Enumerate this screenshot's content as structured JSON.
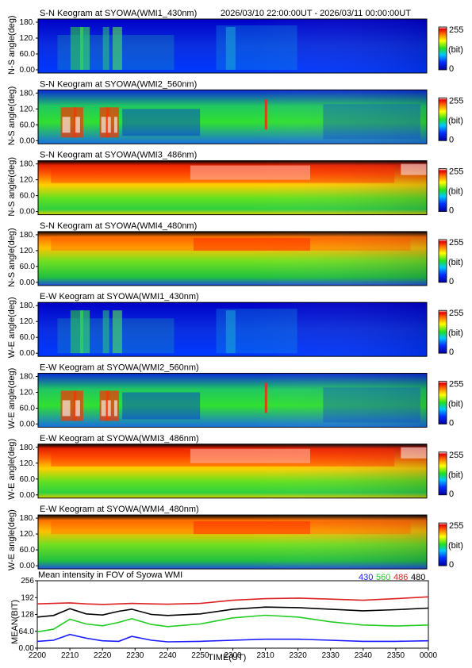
{
  "header": {
    "time_range": "2026/03/10 22:00:00UT - 2026/03/11 00:00:00UT"
  },
  "colorbar": {
    "max_label": "255",
    "unit_label": "(bit)",
    "min_label": "0"
  },
  "keograms": [
    {
      "title": "S-N Keogram at SYOWA(WMI1_430nm)",
      "ylabel": "N-S angle(deg)",
      "yticks": [
        "180.",
        "120.",
        "60.0",
        "0.00"
      ],
      "style": "blue430"
    },
    {
      "title": "S-N Keogram at SYOWA(WMI2_560nm)",
      "ylabel": "N-S angle(deg)",
      "yticks": [
        "180.",
        "120.",
        "60.0",
        "0.00"
      ],
      "style": "green560"
    },
    {
      "title": "S-N Keogram at SYOWA(WMI3_486nm)",
      "ylabel": "N-S angle(deg)",
      "yticks": [
        "180.",
        "120.",
        "60.0",
        "0.00"
      ],
      "style": "red486"
    },
    {
      "title": "S-N Keogram at SYOWA(WMI4_480nm)",
      "ylabel": "N-S angle(deg)",
      "yticks": [
        "180.",
        "120.",
        "60.0",
        "0.00"
      ],
      "style": "orange480"
    },
    {
      "title": "E-W Keogram at SYOWA(WMI1_430nm)",
      "ylabel": "W-E angle(deg)",
      "yticks": [
        "180.",
        "120.",
        "60.0",
        "0.00"
      ],
      "style": "blue430"
    },
    {
      "title": "E-W Keogram at SYOWA(WMI2_560nm)",
      "ylabel": "W-E angle(deg)",
      "yticks": [
        "180.",
        "120.",
        "60.0",
        "0.00"
      ],
      "style": "green560"
    },
    {
      "title": "E-W Keogram at SYOWA(WMI3_486nm)",
      "ylabel": "W-E angle(deg)",
      "yticks": [
        "180.",
        "120.",
        "60.0",
        "0.00"
      ],
      "style": "red486"
    },
    {
      "title": "E-W Keogram at SYOWA(WMI4_480nm)",
      "ylabel": "W-E angle(deg)",
      "yticks": [
        "180.",
        "120.",
        "60.0",
        "0.00"
      ],
      "style": "orange480"
    }
  ],
  "chart_data": {
    "type": "line",
    "title": "Mean intensity in FOV of Syowa WMI",
    "xlabel": "TIME(UT)",
    "ylabel": "MEAN(BIT)",
    "x_ticks": [
      "2200",
      "2210",
      "2220",
      "2230",
      "2240",
      "2250",
      "2300",
      "2310",
      "2320",
      "2330",
      "2340",
      "2350",
      "0000"
    ],
    "y_ticks": [
      "0.00",
      "64.0",
      "128",
      "192",
      "256"
    ],
    "ylim": [
      0,
      256
    ],
    "x_minutes": [
      0,
      5,
      10,
      15,
      20,
      25,
      29,
      35,
      40,
      50,
      60,
      70,
      80,
      90,
      100,
      110,
      120
    ],
    "series": [
      {
        "name": "430",
        "color": "#1a1aff",
        "values": [
          26,
          30,
          52,
          38,
          28,
          26,
          45,
          30,
          24,
          26,
          30,
          34,
          34,
          30,
          26,
          26,
          28
        ]
      },
      {
        "name": "560",
        "color": "#22cc22",
        "values": [
          62,
          72,
          110,
          92,
          85,
          98,
          112,
          90,
          82,
          92,
          115,
          125,
          118,
          100,
          88,
          84,
          88
        ]
      },
      {
        "name": "486",
        "color": "#dd2222",
        "values": [
          168,
          170,
          172,
          168,
          166,
          168,
          170,
          168,
          167,
          170,
          182,
          188,
          190,
          186,
          182,
          188,
          195
        ]
      },
      {
        "name": "480",
        "color": "#000000",
        "values": [
          118,
          124,
          150,
          130,
          126,
          140,
          148,
          128,
          124,
          130,
          148,
          156,
          154,
          148,
          142,
          146,
          152
        ]
      }
    ],
    "legend_placement": "top-right"
  }
}
